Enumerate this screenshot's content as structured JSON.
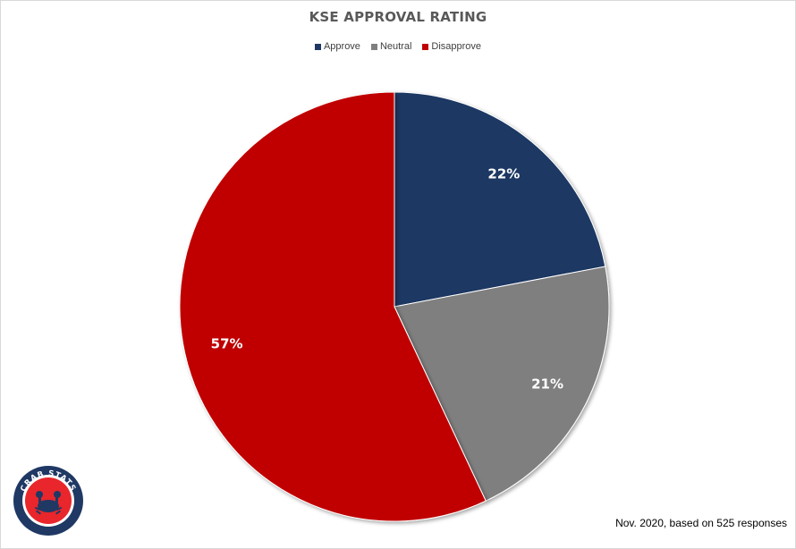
{
  "chart_data": {
    "type": "pie",
    "title": "KSE APPROVAL RATING",
    "legend_position": "top",
    "categories": [
      "Approve",
      "Neutral",
      "Disapprove"
    ],
    "values": [
      22,
      21,
      57
    ],
    "value_labels": [
      "22%",
      "21%",
      "57%"
    ],
    "colors": [
      "#1f3864",
      "#7f7f7f",
      "#c00000"
    ]
  },
  "footnote": "Nov. 2020,  based on 525  responses",
  "logo": {
    "text": "CRAB STATS",
    "icon": "crab-icon"
  }
}
